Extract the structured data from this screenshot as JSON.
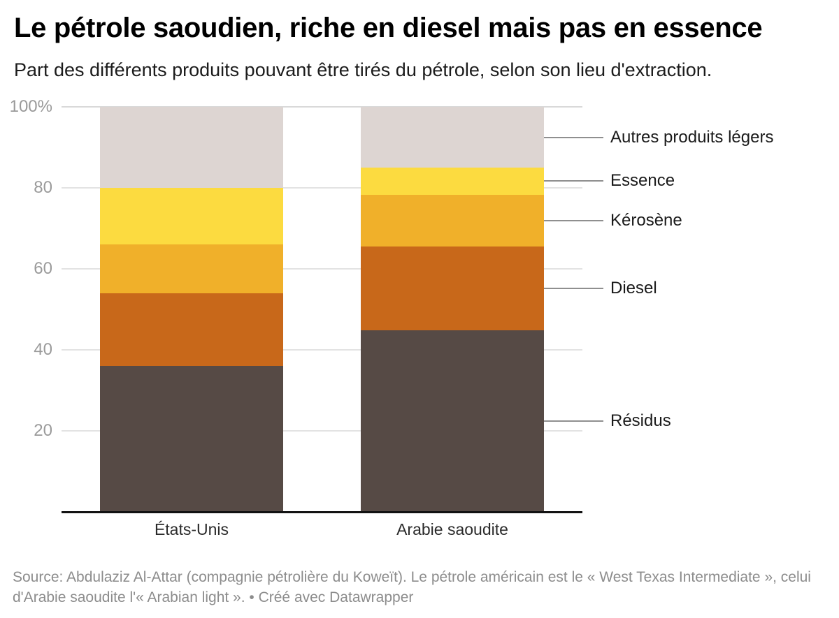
{
  "header": {
    "title": "Le pétrole saoudien, riche en diesel mais pas en essence",
    "subtitle": "Part des différents produits pouvant être tirés du pétrole, selon son lieu d'extraction."
  },
  "chart_data": {
    "type": "bar",
    "stacked": true,
    "unit": "%",
    "title": "Le pétrole saoudien, riche en diesel mais pas en essence",
    "categories": [
      "États-Unis",
      "Arabie saoudite"
    ],
    "series": [
      {
        "name": "Résidus",
        "color": "#564a45",
        "values": [
          36,
          44.8
        ]
      },
      {
        "name": "Diesel",
        "color": "#c8681a",
        "values": [
          18,
          20.7
        ]
      },
      {
        "name": "Kérosène",
        "color": "#f0b02a",
        "values": [
          12,
          12.8
        ]
      },
      {
        "name": "Essence",
        "color": "#fcdb40",
        "values": [
          14,
          6.7
        ]
      },
      {
        "name": "Autres produits légers",
        "color": "#ddd5d2",
        "values": [
          20,
          15.0
        ]
      }
    ],
    "y_axis": {
      "range": [
        0,
        100
      ],
      "grid": true,
      "ticks": [
        {
          "value": 100,
          "label": "100%"
        },
        {
          "value": 80,
          "label": "80"
        },
        {
          "value": 60,
          "label": "60"
        },
        {
          "value": 40,
          "label": "40"
        },
        {
          "value": 20,
          "label": "20"
        }
      ]
    },
    "legend_position": "right-annotations"
  },
  "footer": {
    "text": "Source: Abdulaziz Al-Attar (compagnie pétrolière du Koweït). Le pétrole américain est le « West Texas Intermediate », celui d'Arabie saoudite l'« Arabian light ». • Créé avec Datawrapper"
  }
}
